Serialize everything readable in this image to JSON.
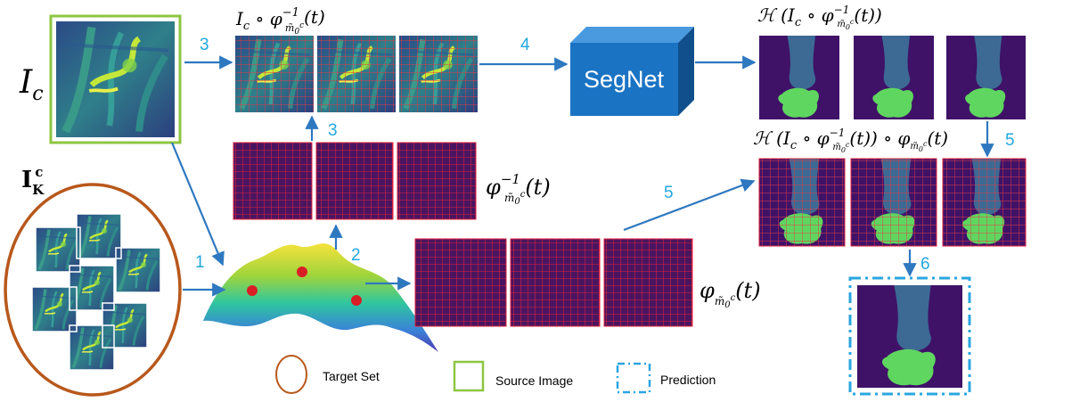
{
  "source_label": "I",
  "source_label_sub": "c",
  "target_label": "I",
  "target_label_sub": "K",
  "target_label_sup": "c",
  "segnet_label": "SegNet",
  "formula_warped": "I_c ∘ φ⁻¹(t)",
  "formula_inverse": "φ⁻¹(t)",
  "formula_forward": "φ(t)",
  "formula_seg": "H(I_c ∘ φ⁻¹(t))",
  "formula_seg_back": "H(I_c ∘ φ⁻¹(t)) ∘ φ(t)",
  "steps": [
    "1",
    "2",
    "3",
    "3",
    "4",
    "5",
    "5",
    "6"
  ],
  "legend": {
    "target_set": "Target  Set",
    "source_image": "Source Image",
    "prediction": "Prediction"
  },
  "colors": {
    "step_text": "#22a8e0",
    "arrow": "#2e78c0",
    "source_border": "#8dc641",
    "target_border": "#b8581c",
    "prediction_border": "#2aa6e0",
    "grid_line": "#e0203c",
    "grid_bg": "#4a1560",
    "bone": "#3c6a94",
    "cartilage": "#5fd65f",
    "seg_bg": "#3f1268",
    "segnet_face": "#1b73c4"
  }
}
